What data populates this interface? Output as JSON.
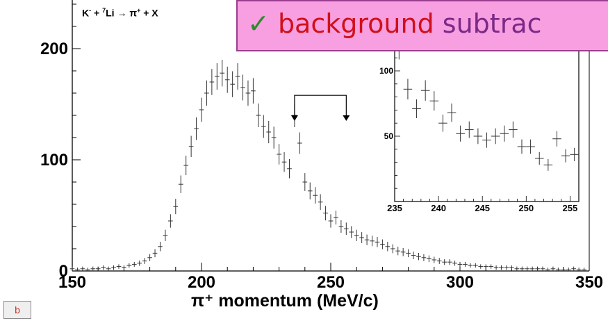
{
  "reaction": {
    "pre": "K",
    "minus": "-",
    "plus_text": " + ",
    "sup": "7",
    "post": "Li → π",
    "pi_sup": "+",
    "tail": " + X"
  },
  "banner": {
    "check": "✓",
    "word1": "background",
    "word2": "subtrac"
  },
  "badge": "b",
  "xlabel": "π⁺ momentum (MeV/c)",
  "chart_data": [
    {
      "type": "scatter",
      "title": "",
      "xlabel": "π⁺ momentum (MeV/c)",
      "ylabel": "",
      "xlim": [
        150,
        350
      ],
      "ylim": [
        0,
        250
      ],
      "x_ticks": [
        "150",
        "200",
        "250",
        "300",
        "350"
      ],
      "y_ticks": [
        "0",
        "100",
        "200"
      ],
      "grid": false,
      "error_bars": true,
      "x": [
        150,
        152,
        154,
        156,
        158,
        160,
        162,
        164,
        166,
        168,
        170,
        172,
        174,
        176,
        178,
        180,
        182,
        184,
        186,
        188,
        190,
        192,
        194,
        196,
        198,
        200,
        202,
        204,
        206,
        208,
        210,
        212,
        214,
        216,
        218,
        220,
        222,
        224,
        226,
        228,
        230,
        232,
        234,
        236,
        238,
        240,
        242,
        244,
        246,
        248,
        250,
        252,
        254,
        256,
        258,
        260,
        262,
        264,
        266,
        268,
        270,
        272,
        274,
        276,
        278,
        280,
        282,
        284,
        286,
        288,
        290,
        292,
        294,
        296,
        298,
        300,
        302,
        304,
        306,
        308,
        310,
        312,
        314,
        316,
        318,
        320,
        322,
        324,
        326,
        328,
        330,
        332,
        334,
        336,
        338,
        340,
        342,
        344,
        346,
        348
      ],
      "y": [
        2,
        1,
        2,
        1,
        2,
        2,
        3,
        2,
        3,
        4,
        3,
        5,
        6,
        7,
        9,
        12,
        16,
        22,
        32,
        45,
        58,
        78,
        95,
        112,
        128,
        145,
        160,
        170,
        175,
        178,
        172,
        168,
        175,
        165,
        160,
        162,
        140,
        130,
        125,
        120,
        105,
        98,
        92,
        140,
        115,
        80,
        72,
        68,
        62,
        52,
        45,
        48,
        40,
        38,
        35,
        32,
        30,
        28,
        27,
        26,
        24,
        22,
        20,
        18,
        17,
        16,
        14,
        13,
        12,
        11,
        10,
        9,
        8,
        8,
        7,
        6,
        6,
        5,
        5,
        4,
        4,
        4,
        3,
        3,
        3,
        3,
        2,
        2,
        2,
        2,
        2,
        2,
        1,
        2,
        1,
        1,
        1,
        2,
        1,
        1
      ]
    },
    {
      "type": "scatter",
      "title": "",
      "xlim": [
        235,
        256
      ],
      "ylim": [
        0,
        125
      ],
      "x_ticks": [
        "235",
        "240",
        "245",
        "250",
        "255"
      ],
      "y_ticks": [
        "50",
        "100"
      ],
      "grid": false,
      "error_bars": true,
      "x": [
        235.5,
        236.5,
        237.5,
        238.5,
        239.5,
        240.5,
        241.5,
        242.5,
        243.5,
        244.5,
        245.5,
        246.5,
        247.5,
        248.5,
        249.5,
        250.5,
        251.5,
        252.5,
        253.5,
        254.5,
        255.5
      ],
      "y": [
        118,
        86,
        71,
        85,
        77,
        60,
        68,
        52,
        55,
        50,
        47,
        50,
        52,
        55,
        42,
        42,
        33,
        28,
        48,
        35,
        36
      ]
    }
  ],
  "arrow_range": [
    236,
    256
  ]
}
